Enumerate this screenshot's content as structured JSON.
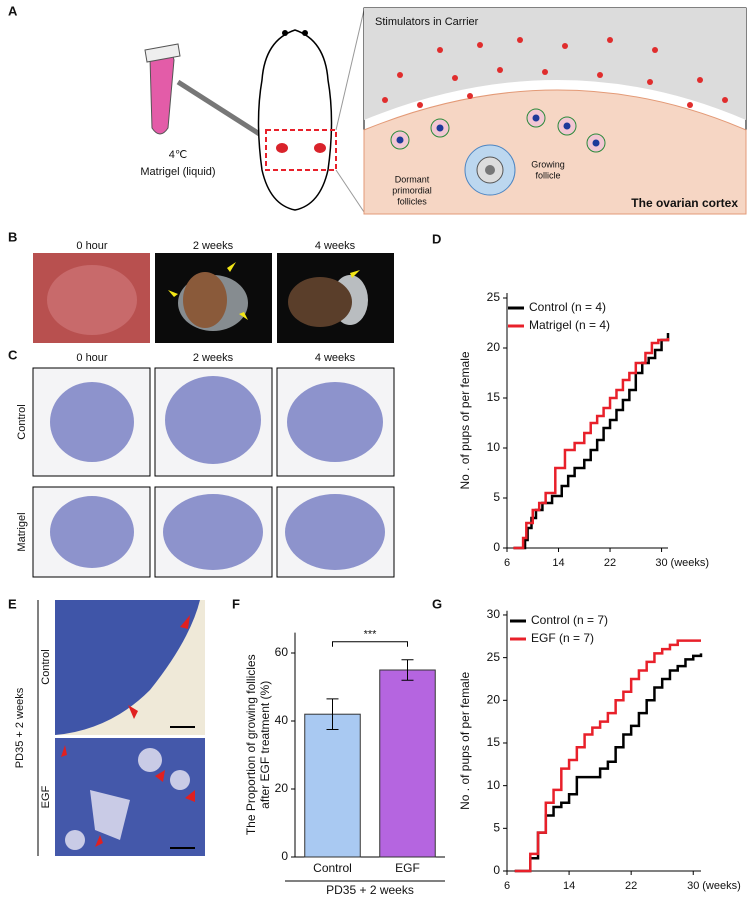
{
  "panel_labels": [
    "A",
    "B",
    "C",
    "D",
    "E",
    "F",
    "G"
  ],
  "panel_a": {
    "temperature": "4℃",
    "reagent": "Matrigel (liquid)",
    "inset_title": "Stimulators in Carrier",
    "dormant_label": [
      "Dormant",
      "primordial",
      "follicles"
    ],
    "growing_label": [
      "Growing",
      "follicle"
    ],
    "region_label": "The ovarian cortex"
  },
  "panel_b": {
    "columns": [
      "0 hour",
      "2 weeks",
      "4 weeks"
    ]
  },
  "panel_c": {
    "columns": [
      "0 hour",
      "2 weeks",
      "4 weeks"
    ],
    "rows": [
      "Control",
      "Matrigel"
    ]
  },
  "panel_e": {
    "group": "PD35 + 2 weeks",
    "rows": [
      "Control",
      "EGF"
    ]
  },
  "chart_data": [
    {
      "type": "line",
      "step": true,
      "y_label": "No . of pups of per female",
      "x_unit": "(weeks)",
      "xlim": [
        6,
        31
      ],
      "xticks": [
        6,
        14,
        22,
        30
      ],
      "ylim": [
        0,
        25.5
      ],
      "yticks": [
        0,
        5,
        10,
        15,
        20,
        25
      ],
      "series": [
        {
          "name": "Control (n = 4)",
          "color": "#000000",
          "x": [
            7,
            8.8,
            9.2,
            9.8,
            10.5,
            11.5,
            13,
            14.5,
            15.5,
            16.5,
            18,
            19,
            20,
            21,
            22,
            23,
            24,
            25,
            26,
            27,
            28,
            29,
            30,
            31
          ],
          "values": [
            0,
            0.8,
            2,
            3,
            3.8,
            4.5,
            5.2,
            6.2,
            7.2,
            8,
            8.8,
            9.8,
            10.8,
            12,
            12.8,
            13.8,
            14.8,
            15.8,
            17.5,
            18.5,
            19,
            19.8,
            20.8,
            21.5
          ]
        },
        {
          "name": "Matrigel (n = 4)",
          "color": "#e8202a",
          "x": [
            7,
            8.5,
            9,
            10,
            11,
            12,
            13.5,
            15,
            16.5,
            18,
            19,
            20,
            21,
            22,
            23,
            24,
            25,
            26,
            27.5,
            28.5,
            29.5,
            31
          ],
          "values": [
            0,
            1,
            2.5,
            3.8,
            4.5,
            5.5,
            8,
            9.8,
            10.5,
            11.5,
            12.5,
            13.2,
            14,
            15,
            15.8,
            16.8,
            17.5,
            18.5,
            19.5,
            20.5,
            20.8,
            21
          ]
        }
      ]
    },
    {
      "type": "bar",
      "y_label": [
        "The Proportion of growing follicles",
        "after EGF treatment (%)"
      ],
      "x_label": "PD35 + 2 weeks",
      "categories": [
        "Control",
        "EGF"
      ],
      "values": [
        42,
        55
      ],
      "errors": [
        4.5,
        3
      ],
      "colors": [
        "#a9c9f2",
        "#b565e0"
      ],
      "significance": "***",
      "ylim": [
        0,
        66
      ],
      "yticks": [
        0,
        20,
        40,
        60
      ]
    },
    {
      "type": "line",
      "step": true,
      "y_label": "No . of pups of per female",
      "x_unit": "(weeks)",
      "xlim": [
        6,
        31
      ],
      "xticks": [
        6,
        14,
        22,
        30
      ],
      "ylim": [
        0,
        30.5
      ],
      "yticks": [
        0,
        5,
        10,
        15,
        20,
        25,
        30
      ],
      "series": [
        {
          "name": "Control (n = 7)",
          "color": "#000000",
          "x": [
            7,
            9,
            10,
            11,
            12,
            13,
            14,
            15,
            16,
            17,
            18,
            19,
            20,
            21,
            22,
            23,
            24,
            25,
            26,
            27,
            28,
            29,
            30,
            31
          ],
          "values": [
            0,
            1.5,
            4.5,
            6.5,
            7.5,
            8,
            9,
            11,
            11,
            11,
            12,
            12.8,
            14.5,
            16,
            17,
            18.5,
            20,
            21.5,
            22.5,
            23.5,
            24,
            24.8,
            25.2,
            25.5
          ]
        },
        {
          "name": "EGF (n = 7)",
          "color": "#e8202a",
          "x": [
            7,
            9,
            10,
            11,
            12,
            13,
            14,
            15,
            16,
            17,
            18,
            19,
            20,
            21,
            22,
            23,
            24,
            25,
            26,
            27,
            28,
            29,
            30,
            31
          ],
          "values": [
            0,
            2,
            4.5,
            8,
            9.5,
            12,
            13,
            14.5,
            16,
            16.8,
            17.5,
            18.5,
            20,
            21,
            22.5,
            23.5,
            24.5,
            25.5,
            26,
            26.5,
            27,
            27,
            27,
            27
          ]
        }
      ]
    }
  ]
}
